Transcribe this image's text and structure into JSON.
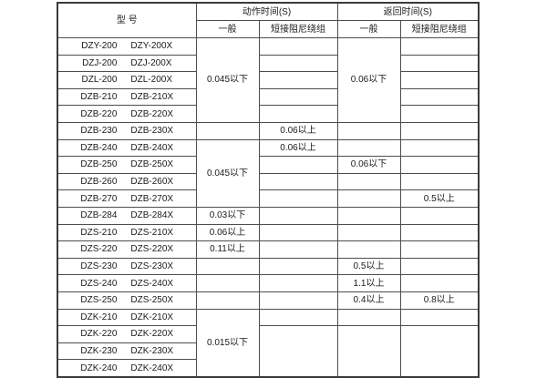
{
  "header": {
    "model": "型  号",
    "action_time": "动作时间(S)",
    "return_time": "返回时间(S)",
    "general": "一般",
    "short_damping": "短接阻尼绕组"
  },
  "models": [
    {
      "a": "DZY-200",
      "b": "DZY-200X"
    },
    {
      "a": "DZJ-200",
      "b": "DZJ-200X"
    },
    {
      "a": "DZL-200",
      "b": "DZL-200X"
    },
    {
      "a": "DZB-210",
      "b": "DZB-210X"
    },
    {
      "a": "DZB-220",
      "b": "DZB-220X"
    },
    {
      "a": "DZB-230",
      "b": "DZB-230X"
    },
    {
      "a": "DZB-240",
      "b": "DZB-240X"
    },
    {
      "a": "DZB-250",
      "b": "DZB-250X"
    },
    {
      "a": "DZB-260",
      "b": "DZB-260X"
    },
    {
      "a": "DZB-270",
      "b": "DZB-270X"
    },
    {
      "a": "DZB-284",
      "b": "DZB-284X"
    },
    {
      "a": "DZS-210",
      "b": "DZS-210X"
    },
    {
      "a": "DZS-220",
      "b": "DZS-220X"
    },
    {
      "a": "DZS-230",
      "b": "DZS-230X"
    },
    {
      "a": "DZS-240",
      "b": "DZS-240X"
    },
    {
      "a": "DZS-250",
      "b": "DZS-250X"
    },
    {
      "a": "DZK-210",
      "b": "DZK-210X"
    },
    {
      "a": "DZK-220",
      "b": "DZK-220X"
    },
    {
      "a": "DZK-230",
      "b": "DZK-230X"
    },
    {
      "a": "DZK-240",
      "b": "DZK-240X"
    }
  ],
  "values": {
    "act_gen_rows1_5": "0.045以下",
    "act_gen_rows7_10": "0.045以下",
    "act_gen_row11": "0.03以下",
    "act_gen_row12": "0.06以上",
    "act_gen_row13": "0.11以上",
    "act_gen_rows17_20": "0.015以下",
    "act_short_row6": "0.06以上",
    "act_short_row7": "0.06以上",
    "ret_gen_rows1_5": "0.06以下",
    "ret_gen_row8": "0.06以下",
    "ret_gen_row14": "0.5以上",
    "ret_gen_row15": "1.1以上",
    "ret_gen_row16": "0.4以上",
    "ret_short_row10": "0.5以上",
    "ret_short_row16": "0.8以上"
  }
}
